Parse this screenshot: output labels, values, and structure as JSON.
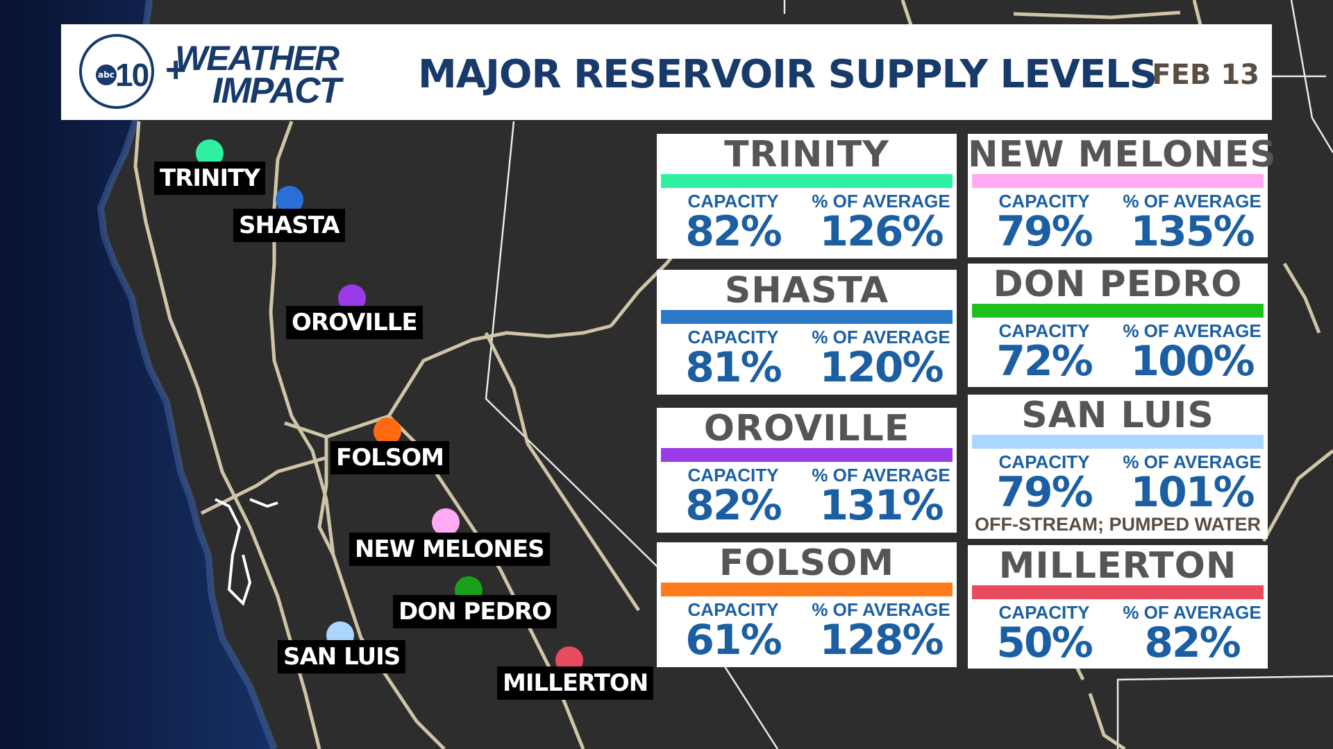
{
  "header": {
    "logo_station": "10",
    "logo_network": "abc",
    "logo_plus": "+",
    "brand_line1": "WEATHER",
    "brand_line2": "IMPACT",
    "title": "MAJOR RESERVOIR SUPPLY LEVELS",
    "date": "FEB 13"
  },
  "labels": {
    "capacity": "CAPACITY",
    "percent_of_average": "% OF AVERAGE"
  },
  "reservoirs": [
    {
      "name": "TRINITY",
      "color": "#2ef0a0",
      "capacity": "82%",
      "percent_of_average": "126%",
      "capacity_value": 82,
      "percent_of_average_value": 126
    },
    {
      "name": "SHASTA",
      "color": "#2a78c8",
      "capacity": "81%",
      "percent_of_average": "120%",
      "capacity_value": 81,
      "percent_of_average_value": 120
    },
    {
      "name": "OROVILLE",
      "color": "#9b3ae8",
      "capacity": "82%",
      "percent_of_average": "131%",
      "capacity_value": 82,
      "percent_of_average_value": 131
    },
    {
      "name": "FOLSOM",
      "color": "#ff7a1a",
      "capacity": "61%",
      "percent_of_average": "128%",
      "capacity_value": 61,
      "percent_of_average_value": 128
    },
    {
      "name": "NEW MELONES",
      "color": "#ffaaf2",
      "capacity": "79%",
      "percent_of_average": "135%",
      "capacity_value": 79,
      "percent_of_average_value": 135
    },
    {
      "name": "DON PEDRO",
      "color": "#1ec020",
      "capacity": "72%",
      "percent_of_average": "100%",
      "capacity_value": 72,
      "percent_of_average_value": 100
    },
    {
      "name": "SAN LUIS",
      "color": "#aad6ff",
      "capacity": "79%",
      "percent_of_average": "101%",
      "capacity_value": 79,
      "percent_of_average_value": 101,
      "note": "OFF-STREAM; PUMPED WATER"
    },
    {
      "name": "MILLERTON",
      "color": "#e84a5e",
      "capacity": "50%",
      "percent_of_average": "82%",
      "capacity_value": 50,
      "percent_of_average_value": 82
    }
  ],
  "map": {
    "land_color": "#2d2d2e",
    "ocean_color": "#0b1633",
    "border_color": "#ffffff",
    "road_color": "#d8cdae",
    "markers": [
      {
        "name": "TRINITY",
        "color": "#2ef0a0"
      },
      {
        "name": "SHASTA",
        "color": "#2a6fd6"
      },
      {
        "name": "OROVILLE",
        "color": "#9b3ae8"
      },
      {
        "name": "FOLSOM",
        "color": "#ff6a10"
      },
      {
        "name": "NEW MELONES",
        "color": "#ffaaf2"
      },
      {
        "name": "DON PEDRO",
        "color": "#18a018"
      },
      {
        "name": "SAN LUIS",
        "color": "#aad6ff"
      },
      {
        "name": "MILLERTON",
        "color": "#e84a5e"
      }
    ]
  }
}
